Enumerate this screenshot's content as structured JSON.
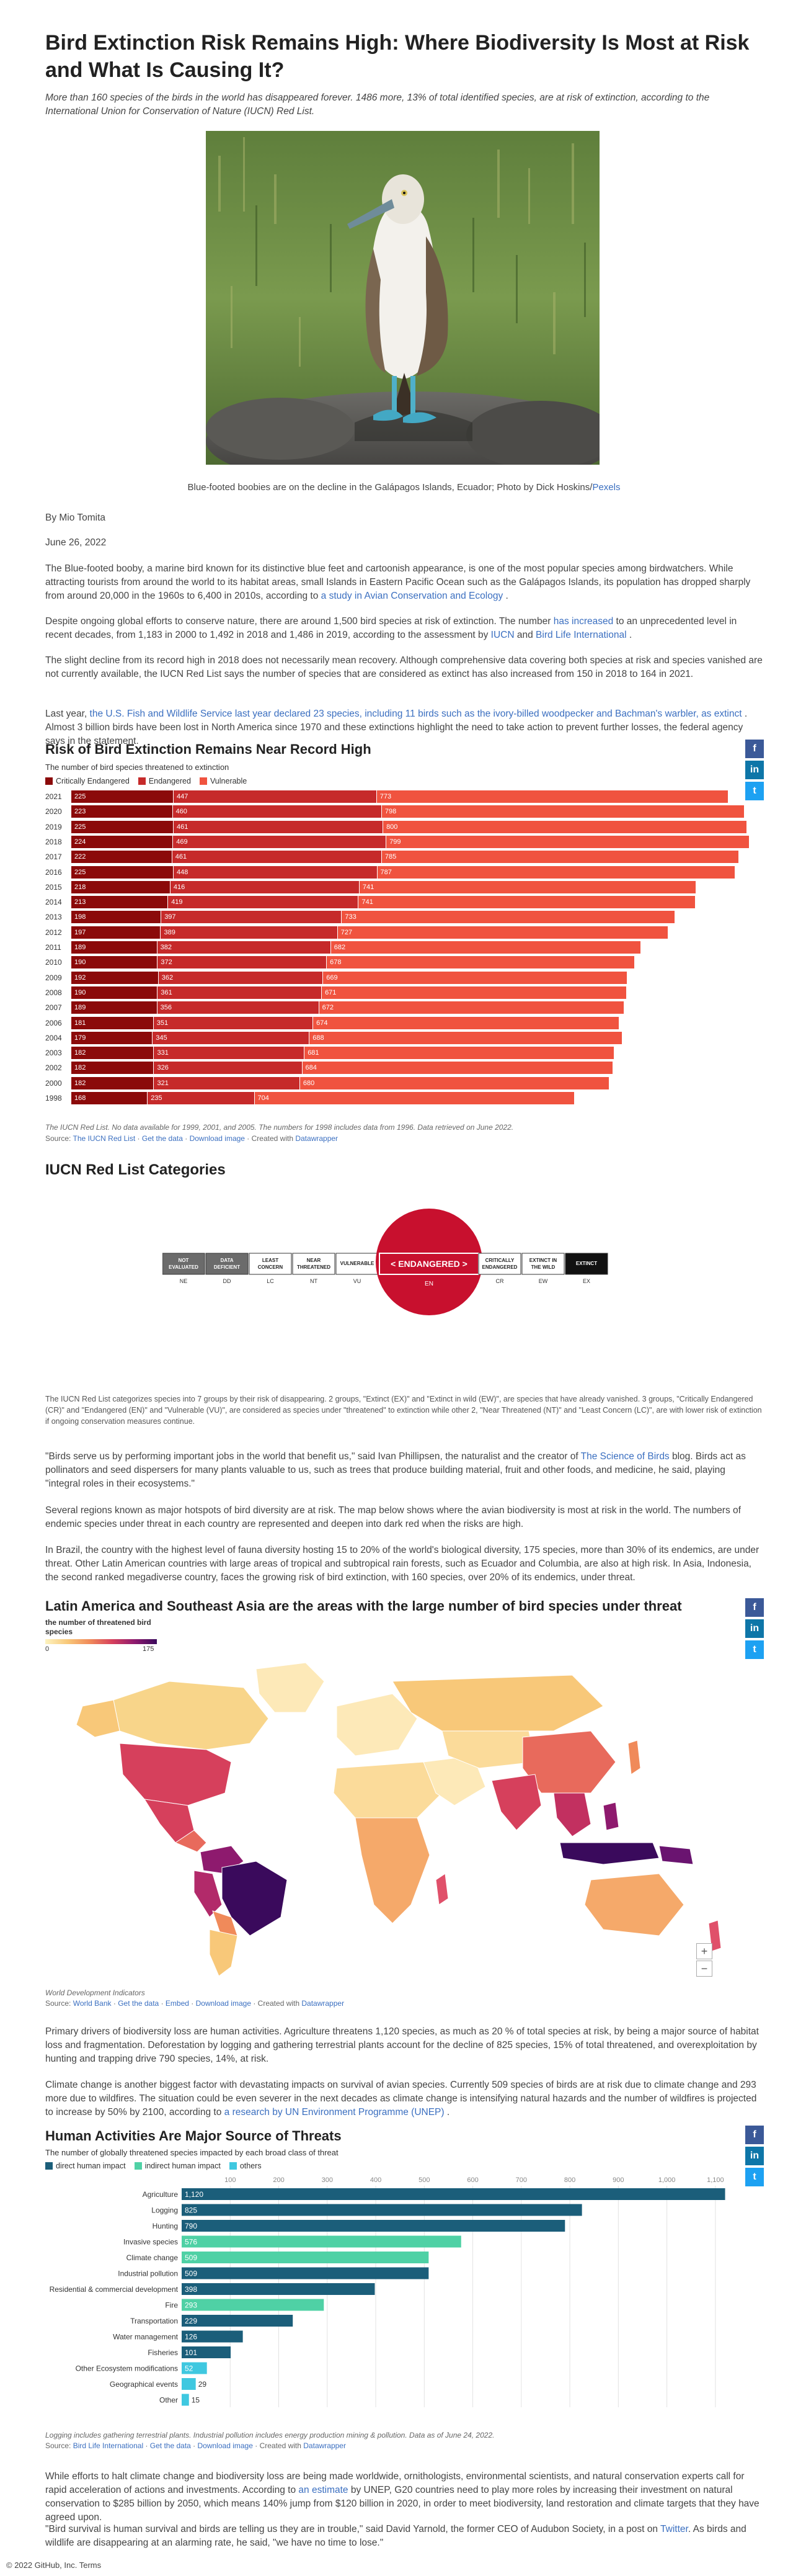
{
  "article": {
    "title": "Bird Extinction Risk Remains High: Where Biodiversity Is Most at Risk and What Is Causing It?",
    "lead": "More than 160 species of the birds in the world has disappeared forever. 1486 more, 13% of total identified species, are at risk of extinction, according to the International Union for Conservation of Nature (IUCN) Red List.",
    "photo_caption_text": "Blue-footed boobies are on the decline in the Galápagos Islands, Ecuador; Photo by Dick Hoskins/",
    "photo_caption_link": "Pexels",
    "author": "By Mio Tomita",
    "date": "June 26, 2022",
    "p1_a": "The Blue-footed booby, a marine bird known for its distinctive blue feet and cartoonish appearance, is one of the most popular species among birdwatchers. While attracting tourists from around the world to its habitat areas, small Islands in Eastern Pacific Ocean such as the Galápagos Islands, its population has dropped sharply from around 20,000 in the 1960s to 6,400 in 2010s, according to ",
    "p1_link": "a study in Avian Conservation and Ecology",
    "p1_b": " .",
    "p2_a": "Despite ongoing global efforts to conserve nature, there are around 1,500 bird species at risk of extinction. The number ",
    "p2_link1": "has increased",
    "p2_b": " to an unprecedented level in recent decades, from 1,183 in 2000 to 1,492 in 2018 and 1,486 in 2019, according to the assessment by ",
    "p2_link2": "IUCN",
    "p2_c": " and ",
    "p2_link3": "Bird Life International",
    "p2_d": " .",
    "p3": "The slight decline from its record high in 2018 does not necessarily mean recovery. Although comprehensive data covering both species at risk and species vanished are not currently available, the IUCN Red List says the number of species that are considered as extinct has also increased from 150 in 2018 to 164 in 2021.",
    "p4_a": "Last year, ",
    "p4_link": "the U.S. Fish and Wildlife Service last year declared 23 species, including 11 birds such as the ivory-billed woodpecker and Bachman's warbler, as extinct",
    "p4_b": " . Almost 3 billion birds have been lost in North America since 1970 and these extinctions highlight the need to take action to prevent further losses, the federal agency says in the statement.",
    "p5_a": "\"Birds serve us by performing important jobs in the world that benefit us,\" said Ivan Phillipsen, the naturalist and the creator of ",
    "p5_link": "The Science of Birds",
    "p5_b": " blog. Birds act as pollinators and seed dispersers for many plants valuable to us, such as trees that produce building material, fruit and other foods, and medicine, he said, playing \"integral roles in their ecosystems.\"",
    "p6": "Several regions known as major hotspots of bird diversity are at risk. The map below shows where the avian biodiversity is most at risk in the world. The numbers of endemic species under threat in each country are represented and deepen into dark red when the risks are high.",
    "p7": "In Brazil, the country with the highest level of fauna diversity hosting 15 to 20% of the world's biological diversity, 175 species, more than 30% of its endemics, are under threat. Other Latin American countries with large areas of tropical and subtropical rain forests, such as Ecuador and Columbia, are also at high risk. In Asia, Indonesia, the second ranked megadiverse country, faces the growing risk of bird extinction, with 160 species, over 20% of its endemics, under threat.",
    "p8": "Primary drivers of biodiversity loss are human activities. Agriculture threatens 1,120 species, as much as 20 % of total species at risk, by being a major source of habitat loss and fragmentation. Deforestation by logging and gathering terrestrial plants account for the decline of 825 species, 15% of total threatened, and overexploitation by hunting and trapping drive 790 species, 14%, at risk.",
    "p9_a": "Climate change is another biggest factor with devastating impacts on survival of avian species. Currently 509 species of birds are at risk due to climate change and 293 more due to wildfires. The situation could be even severer in the next decades as climate change is intensifying natural hazards and the number of wildfires is projected to increase by 50% by 2100, according to ",
    "p9_link": "a research by UN Environment Programme (UNEP)",
    "p9_b": " .",
    "p10_a": "While efforts to halt climate change and biodiversity loss are being made worldwide, ornithologists, environmental scientists, and natural conservation experts call for rapid acceleration of actions and investments. According to ",
    "p10_link": "an estimate",
    "p10_b": " by UNEP, G20 countries need to play more roles by increasing their investment on natural conservation to $285 billion by 2050, which means 140% jump from $120 billion in 2020, in order to meet biodiversity, land restoration and climate targets that they have agreed upon.",
    "p11_a": "\"Bird survival is human survival and birds are telling us they are in trouble,\" said David Yarnold, the former CEO of Audubon Society, in a post on ",
    "p11_link": "Twitter",
    "p11_b": ". As birds and wildlife are disappearing at an alarming rate, he said, \"we have no time to lose.\""
  },
  "share": {
    "facebook": "f",
    "linkedin": "in",
    "twitter": "t"
  },
  "chart1": {
    "title": "Risk of Bird Extinction Remains Near Record High",
    "subtitle": "The number of bird species threatened to extinction",
    "note": "The IUCN Red List. No data available for 1999, 2001, and 2005. The numbers for 1998 includes data from 1996. Data retrieved on June 2022.",
    "source_label": "Source: ",
    "source_link": "The IUCN Red List",
    "links": [
      "Get the data",
      "Download image"
    ],
    "created_label": "Created with ",
    "created_link": "Datawrapper"
  },
  "chart_data": [
    {
      "type": "bar",
      "stacked": true,
      "orientation": "horizontal",
      "title": "Risk of Bird Extinction Remains Near Record High",
      "subtitle": "The number of bird species threatened to extinction",
      "categories": [
        "2021",
        "2020",
        "2019",
        "2018",
        "2017",
        "2016",
        "2015",
        "2014",
        "2013",
        "2012",
        "2011",
        "2010",
        "2009",
        "2008",
        "2007",
        "2006",
        "2004",
        "2003",
        "2002",
        "2000",
        "1998"
      ],
      "series": [
        {
          "name": "Critically Endangered",
          "color": "#8b0a0a",
          "values": [
            225,
            223,
            225,
            224,
            222,
            225,
            218,
            213,
            198,
            197,
            189,
            190,
            192,
            190,
            189,
            181,
            179,
            182,
            182,
            182,
            168
          ]
        },
        {
          "name": "Endangered",
          "color": "#c62a2a",
          "values": [
            447,
            460,
            461,
            469,
            461,
            448,
            416,
            419,
            397,
            389,
            382,
            372,
            362,
            361,
            356,
            351,
            345,
            331,
            326,
            321,
            235
          ]
        },
        {
          "name": "Vulnerable",
          "color": "#f0533f",
          "values": [
            773,
            798,
            800,
            799,
            785,
            787,
            741,
            741,
            733,
            727,
            682,
            678,
            669,
            671,
            672,
            674,
            688,
            681,
            684,
            680,
            704
          ]
        }
      ],
      "legend_position": "top-left"
    },
    {
      "type": "bar",
      "orientation": "horizontal",
      "title": "Human Activities Are Major Source of Threats",
      "subtitle": "The number of globally threatened species impacted by each broad class of threat",
      "categories": [
        "Agriculture",
        "Logging",
        "Hunting",
        "Invasive species",
        "Climate change",
        "Industrial pollution",
        "Residential & commercial development",
        "Fire",
        "Transportation",
        "Water management",
        "Fisheries",
        "Other Ecosystem modifications",
        "Geographical events",
        "Other"
      ],
      "values": [
        1120,
        825,
        790,
        576,
        509,
        509,
        398,
        293,
        229,
        126,
        101,
        52,
        29,
        15
      ],
      "groups": [
        "direct",
        "direct",
        "direct",
        "indirect",
        "indirect",
        "direct",
        "direct",
        "indirect",
        "direct",
        "direct",
        "direct",
        "direct",
        "indirect",
        "indirect"
      ],
      "legend": [
        {
          "name": "direct human impact",
          "color": "#1b5e7a"
        },
        {
          "name": "indirect human impact",
          "color": "#4fd1a5"
        },
        {
          "name": "others",
          "color": "#3fc8e0"
        }
      ],
      "xticks": [
        100,
        200,
        300,
        400,
        500,
        600,
        700,
        800,
        900,
        1000,
        1100
      ],
      "xlim": [
        0,
        1150
      ],
      "legend_position": "top-left"
    }
  ],
  "iucn": {
    "heading": "IUCN Red List Categories",
    "categories": [
      {
        "label": "NOT EVALUATED",
        "code": "NE"
      },
      {
        "label": "DATA DEFICIENT",
        "code": "DD"
      },
      {
        "label": "LEAST CONCERN",
        "code": "LC"
      },
      {
        "label": "NEAR THREATENED",
        "code": "NT"
      },
      {
        "label": "VULNERABLE",
        "code": "VU"
      },
      {
        "label": "ENDANGERED",
        "code": "EN"
      },
      {
        "label": "CRITICALLY ENDANGERED",
        "code": "CR"
      },
      {
        "label": "EXTINCT IN THE WILD",
        "code": "EW"
      },
      {
        "label": "EXTINCT",
        "code": "EX"
      }
    ],
    "explain": "The IUCN Red List categorizes species into 7 groups by their risk of disappearing. 2 groups, \"Extinct (EX)\" and \"Extinct in wild (EW)\", are species that have already vanished. 3 groups, \"Critically Endangered (CR)\" and \"Endangered (EN)\" and \"Vulnerable (VU)\", are considered as species under \"threatened\" to extinction while other 2, \"Near Threatened (NT)\" and \"Least Concern (LC)\", are with lower risk of extinction if ongoing conservation measures continue."
  },
  "map": {
    "title": "Latin America and Southeast Asia are the areas with the large number of bird species under threat",
    "legend_title": "the number of threatened bird species",
    "legend_min": "0",
    "legend_max": "175",
    "note": "World Development Indicators",
    "source_label": "Source: ",
    "source_link": "World Bank",
    "links": [
      "Get the data",
      "Embed",
      "Download image"
    ],
    "created_label": "Created with ",
    "created_link": "Datawrapper",
    "zoom_in": "+",
    "zoom_out": "−"
  },
  "chart2": {
    "title": "Human Activities Are Major Source of Threats",
    "subtitle": "The number of globally threatened species impacted by each broad class of threat",
    "note": "Logging includes gathering terrestrial plants. Industrial pollution includes energy production mining & pollution. Data as of June 24, 2022.",
    "source_label": "Source: ",
    "source_link": "Bird Life International",
    "links": [
      "Get the data",
      "Download image"
    ],
    "created_label": "Created with ",
    "created_link": "Datawrapper"
  },
  "footer": "© 2022 GitHub, Inc. Terms",
  "colors": {
    "cr": "#8b0a0a",
    "en": "#c62a2a",
    "vu": "#f0533f",
    "direct": "#1b5e7a",
    "indirect": "#4fd1a5",
    "other": "#3fc8e0",
    "link": "#3b6fc0"
  }
}
